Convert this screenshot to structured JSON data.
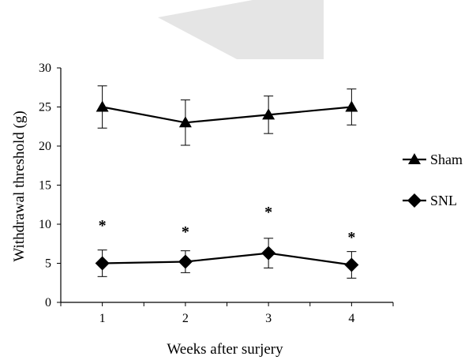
{
  "chart_data": {
    "type": "line",
    "title": "",
    "xlabel": "Weeks after surjery",
    "ylabel": "Withdrawal threshold (g)",
    "categories": [
      "1",
      "2",
      "3",
      "4"
    ],
    "ylim": [
      0,
      30
    ],
    "yticks": [
      "0",
      "5",
      "10",
      "15",
      "20",
      "25",
      "30"
    ],
    "grid": false,
    "legend_position": "right",
    "series": [
      {
        "name": "Sham",
        "marker": "triangle",
        "values": [
          25,
          23,
          24,
          25
        ],
        "error": [
          2.7,
          2.9,
          2.4,
          2.3
        ]
      },
      {
        "name": "SNL",
        "marker": "diamond",
        "values": [
          5.0,
          5.2,
          6.3,
          4.8
        ],
        "error": [
          1.7,
          1.4,
          1.9,
          1.7
        ]
      }
    ],
    "annotations": [
      {
        "category": "1",
        "text": "*",
        "y": 10.2
      },
      {
        "category": "2",
        "text": "*",
        "y": 9.4
      },
      {
        "category": "3",
        "text": "*",
        "y": 11.9
      },
      {
        "category": "4",
        "text": "*",
        "y": 8.7
      }
    ]
  }
}
